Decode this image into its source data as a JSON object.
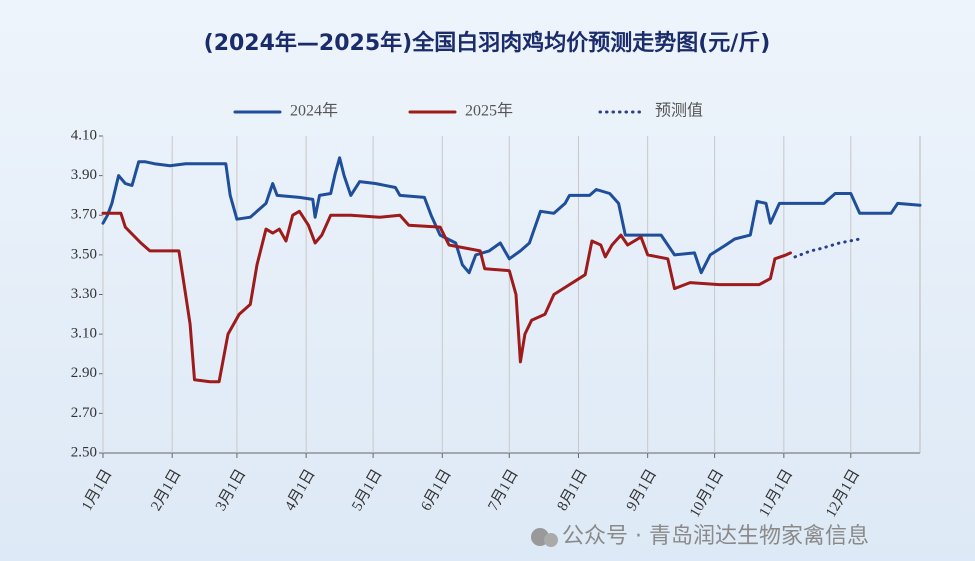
{
  "chart_data": {
    "type": "line",
    "title": "(2024年—2025年)全国白羽肉鸡均价预测走势图(元/斤)",
    "xlim": [
      0,
      366
    ],
    "xticks": [
      {
        "value": 0,
        "label": "1月1日"
      },
      {
        "value": 31,
        "label": "2月1日"
      },
      {
        "value": 60,
        "label": "3月1日"
      },
      {
        "value": 91,
        "label": "4月1日"
      },
      {
        "value": 121,
        "label": "5月1日"
      },
      {
        "value": 152,
        "label": "6月1日"
      },
      {
        "value": 182,
        "label": "7月1日"
      },
      {
        "value": 213,
        "label": "8月1日"
      },
      {
        "value": 244,
        "label": "9月1日"
      },
      {
        "value": 274,
        "label": "10月1日"
      },
      {
        "value": 305,
        "label": "11月1日"
      },
      {
        "value": 335,
        "label": "12月1日"
      }
    ],
    "ylim": [
      2.5,
      4.1
    ],
    "yticks": [
      {
        "value": 2.5,
        "label": "2.50"
      },
      {
        "value": 2.7,
        "label": "2.70"
      },
      {
        "value": 2.9,
        "label": "2.90"
      },
      {
        "value": 3.1,
        "label": "3.10"
      },
      {
        "value": 3.3,
        "label": "3.30"
      },
      {
        "value": 3.5,
        "label": "3.50"
      },
      {
        "value": 3.7,
        "label": "3.70"
      },
      {
        "value": 3.9,
        "label": "3.90"
      },
      {
        "value": 4.1,
        "label": "4.10"
      }
    ],
    "grid": "x",
    "legend": "top",
    "series": [
      {
        "name": "2024年",
        "color": "#1f4e9a",
        "style": "solid",
        "x": [
          0,
          2,
          4,
          7,
          10,
          13,
          16,
          19,
          23,
          30,
          37,
          43,
          55,
          57,
          60,
          66,
          69,
          73,
          76,
          78,
          88,
          94,
          95,
          97,
          102,
          104,
          106,
          108,
          111,
          115,
          122,
          131,
          133,
          144,
          147,
          151,
          158,
          161,
          164,
          167,
          173,
          178,
          182,
          187,
          191,
          196,
          202,
          207,
          209,
          218,
          221,
          227,
          231,
          234,
          241,
          250,
          253,
          256,
          265,
          268,
          272,
          279,
          283,
          290,
          293,
          297,
          299,
          303,
          312,
          323,
          328,
          335,
          339,
          353,
          356,
          366
        ],
        "values": [
          3.66,
          3.7,
          3.76,
          3.9,
          3.86,
          3.85,
          3.97,
          3.97,
          3.96,
          3.95,
          3.96,
          3.96,
          3.96,
          3.8,
          3.68,
          3.69,
          3.72,
          3.76,
          3.86,
          3.8,
          3.79,
          3.78,
          3.69,
          3.8,
          3.81,
          3.91,
          3.99,
          3.9,
          3.8,
          3.87,
          3.86,
          3.84,
          3.8,
          3.79,
          3.7,
          3.6,
          3.56,
          3.45,
          3.41,
          3.5,
          3.52,
          3.56,
          3.48,
          3.52,
          3.56,
          3.72,
          3.71,
          3.76,
          3.8,
          3.8,
          3.83,
          3.81,
          3.76,
          3.6,
          3.6,
          3.6,
          3.55,
          3.5,
          3.51,
          3.41,
          3.5,
          3.55,
          3.58,
          3.6,
          3.77,
          3.76,
          3.66,
          3.76,
          3.76,
          3.76,
          3.81,
          3.81,
          3.71,
          3.71,
          3.76,
          3.75
        ]
      },
      {
        "name": "2025年",
        "color": "#9e1b1b",
        "style": "solid",
        "x": [
          0,
          8,
          10,
          17,
          21,
          34,
          37,
          39,
          41,
          48,
          52,
          56,
          61,
          66,
          69,
          73,
          76,
          79,
          82,
          85,
          88,
          92,
          95,
          98,
          102,
          111,
          124,
          133,
          137,
          151,
          155,
          169,
          171,
          182,
          185,
          187,
          189,
          192,
          198,
          202,
          209,
          216,
          219,
          223,
          225,
          228,
          232,
          235,
          241,
          244,
          253,
          256,
          263,
          276,
          294,
          299,
          301,
          306,
          308
        ],
        "values": [
          3.71,
          3.71,
          3.64,
          3.56,
          3.52,
          3.52,
          3.3,
          3.15,
          2.87,
          2.86,
          2.86,
          3.1,
          3.2,
          3.25,
          3.45,
          3.63,
          3.61,
          3.63,
          3.57,
          3.7,
          3.72,
          3.65,
          3.56,
          3.6,
          3.7,
          3.7,
          3.69,
          3.7,
          3.65,
          3.64,
          3.55,
          3.52,
          3.43,
          3.42,
          3.3,
          2.96,
          3.1,
          3.17,
          3.2,
          3.3,
          3.35,
          3.4,
          3.57,
          3.55,
          3.49,
          3.55,
          3.6,
          3.55,
          3.59,
          3.5,
          3.48,
          3.33,
          3.36,
          3.35,
          3.35,
          3.38,
          3.48,
          3.5,
          3.51
        ]
      },
      {
        "name": "预测值",
        "color": "#2b3f8f",
        "style": "dotted",
        "x": [
          310,
          317,
          321,
          330,
          339
        ],
        "values": [
          3.49,
          3.52,
          3.53,
          3.56,
          3.58
        ]
      }
    ]
  },
  "watermark": "公众号 · 青岛润达生物家禽信息"
}
